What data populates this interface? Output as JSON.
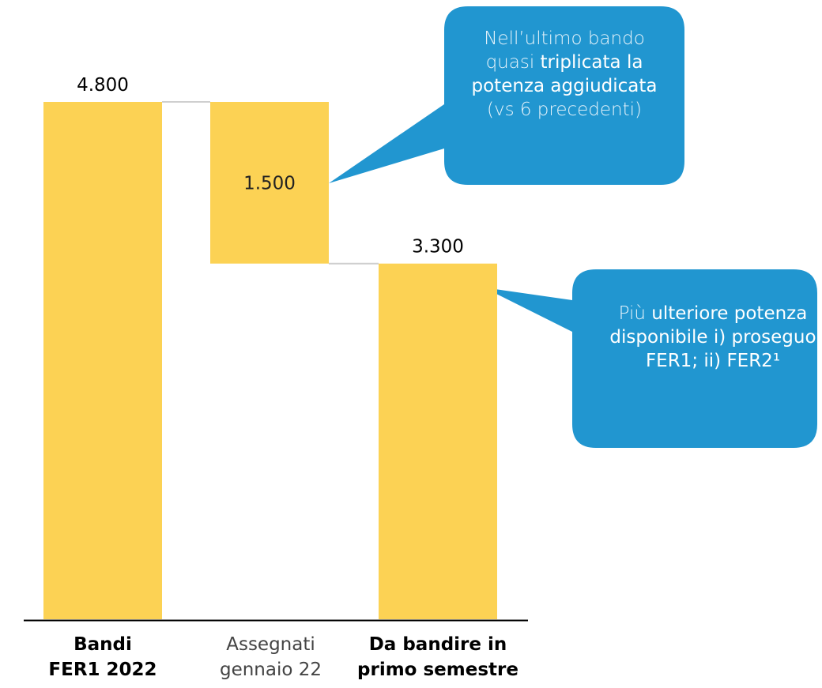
{
  "chart_data": {
    "type": "bar",
    "subtype": "waterfall",
    "categories": [
      "Bandi FER1 2022",
      "Assegnati gennaio 22",
      "Da bandire in primo semestre"
    ],
    "category_lines": [
      [
        "Bandi",
        "FER1 2022"
      ],
      [
        "Assegnati",
        "gennaio 22"
      ],
      [
        "Da bandire in",
        "primo semestre"
      ]
    ],
    "values": [
      4800,
      -1500,
      3300
    ],
    "value_labels": [
      "4.800",
      "1.500",
      "3.300"
    ],
    "ylim": [
      0,
      4800
    ],
    "grid": false,
    "colors": {
      "bar": "#fcd254",
      "connector": "#cfcfcf",
      "axis": "#000000"
    }
  },
  "callouts": [
    {
      "segments": [
        {
          "text": "Nell’ultimo bando quasi ",
          "strong": false
        },
        {
          "text": "triplicata la potenza aggiudicata",
          "strong": true
        },
        {
          "text": " (vs 6 precedenti)",
          "strong": false
        }
      ]
    },
    {
      "segments": [
        {
          "text": "Più ",
          "strong": false
        },
        {
          "text": "ulteriore potenza disponibile i) proseguo FER1; ii) FER2¹",
          "strong": true
        }
      ]
    }
  ],
  "colors": {
    "callout_fill": "#2196d0",
    "callout_text": "#ffffff"
  }
}
